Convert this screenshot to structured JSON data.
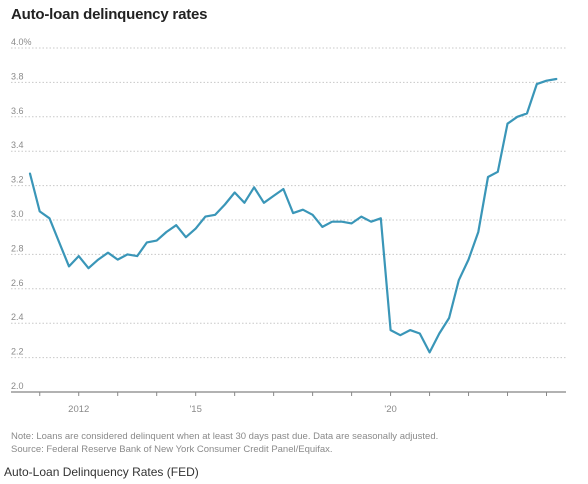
{
  "chart_data": {
    "type": "line",
    "title": "Auto-loan delinquency rates",
    "xlabel": "",
    "ylabel": "",
    "ylim": [
      2.0,
      4.0
    ],
    "yticks": [
      2.0,
      2.2,
      2.4,
      2.6,
      2.8,
      3.0,
      3.2,
      3.4,
      3.6,
      3.8,
      4.0
    ],
    "ytick_labels": [
      "2.0",
      "2.2",
      "2.4",
      "2.6",
      "2.8",
      "3.0",
      "3.2",
      "3.4",
      "3.6",
      "3.8",
      "4.0%"
    ],
    "xlim": [
      2010.75,
      2024.5
    ],
    "xticks": [
      2012,
      2015,
      2020
    ],
    "xtick_labels": [
      "2012",
      "'15",
      "'20"
    ],
    "grid": "horizontal",
    "line_color": "#3a96b8",
    "series": [
      {
        "x": [
          2010.75,
          2011.0,
          2011.25,
          2011.5,
          2011.75,
          2012.0,
          2012.25,
          2012.5,
          2012.75,
          2013.0,
          2013.25,
          2013.5,
          2013.75,
          2014.0,
          2014.25,
          2014.5,
          2014.75,
          2015.0,
          2015.25,
          2015.5,
          2015.75,
          2016.0,
          2016.25,
          2016.5,
          2016.75,
          2017.0,
          2017.25,
          2017.5,
          2017.75,
          2018.0,
          2018.25,
          2018.5,
          2018.75,
          2019.0,
          2019.25,
          2019.5,
          2019.75,
          2020.0,
          2020.25,
          2020.5,
          2020.75,
          2021.0,
          2021.25,
          2021.5,
          2021.75,
          2022.0,
          2022.25,
          2022.5,
          2022.75,
          2023.0,
          2023.25,
          2023.5,
          2023.75,
          2024.0,
          2024.25
        ],
        "values": [
          3.27,
          3.05,
          3.01,
          2.87,
          2.73,
          2.79,
          2.72,
          2.77,
          2.81,
          2.77,
          2.8,
          2.79,
          2.87,
          2.88,
          2.93,
          2.97,
          2.9,
          2.95,
          3.02,
          3.03,
          3.09,
          3.16,
          3.1,
          3.19,
          3.1,
          3.14,
          3.18,
          3.04,
          3.06,
          3.03,
          2.96,
          2.99,
          2.99,
          2.98,
          3.02,
          2.99,
          3.01,
          2.36,
          2.33,
          2.36,
          2.34,
          2.23,
          2.34,
          2.43,
          2.65,
          2.77,
          2.93,
          3.25,
          3.28,
          3.56,
          3.6,
          3.62,
          3.79,
          3.81,
          3.82
        ]
      }
    ]
  },
  "note": {
    "line1": "Note: Loans are considered delinquent when at least 30 days past due. Data are seasonally adjusted.",
    "line2": "Source: Federal Reserve Bank of New York Consumer Credit Panel/Equifax."
  },
  "caption": "Auto-Loan Delinquency Rates (FED)"
}
